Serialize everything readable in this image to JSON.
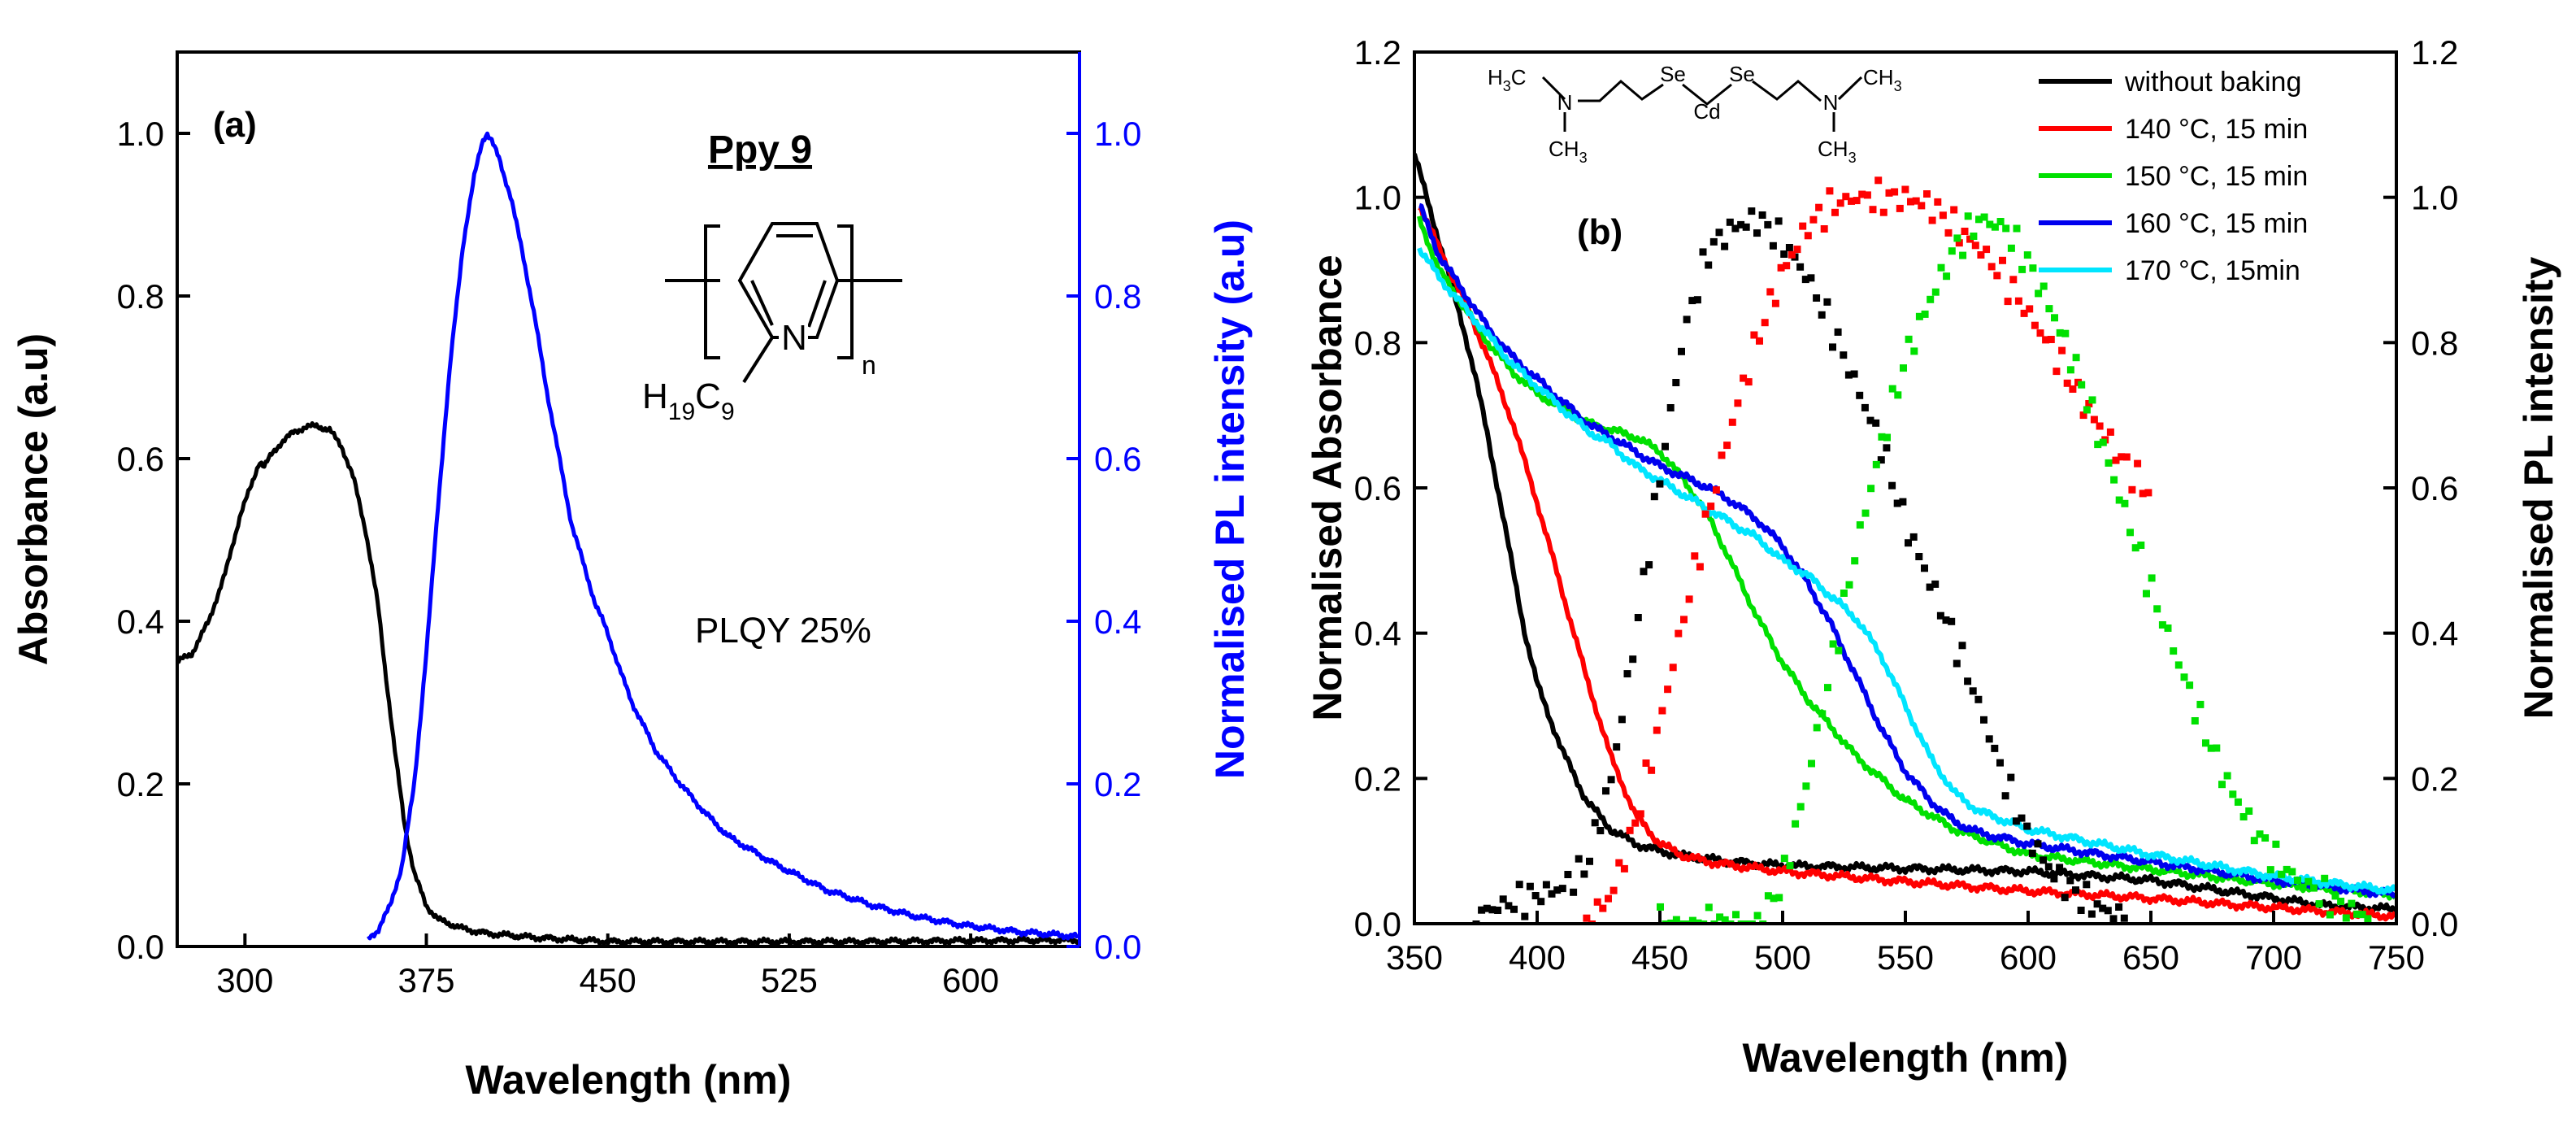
{
  "chart_data": [
    {
      "panel": "a",
      "type": "line",
      "panel_label": "(a)",
      "xlabel": "Wavelength (nm)",
      "ylabel": "Absorbance (a.u)",
      "y2label": "Normalised PL intensity (a.u)",
      "xlim": [
        272,
        645
      ],
      "ylim": [
        0,
        1.1
      ],
      "y2lim": [
        0,
        1.1
      ],
      "xticks": [
        300,
        375,
        450,
        525,
        600
      ],
      "yticks": [
        "0.0",
        "0.2",
        "0.4",
        "0.6",
        "0.8",
        "1.0"
      ],
      "y2ticks": [
        "0.0",
        "0.2",
        "0.4",
        "0.6",
        "0.8",
        "1.0"
      ],
      "compound_label": "Ppy 9",
      "substituent": {
        "main": "H",
        "sub1": "19",
        "mid": "C",
        "sub2": "9"
      },
      "ring_atom": "N",
      "repeat_subscript": "n",
      "annotation": "PLQY  25%",
      "series": [
        {
          "name": "Absorbance",
          "axis": "left",
          "color": "#000000",
          "x": [
            272,
            278,
            285,
            292,
            298,
            303,
            306,
            308,
            311,
            315,
            320,
            325,
            330,
            335,
            340,
            345,
            350,
            355,
            358,
            362,
            366,
            370,
            375,
            380,
            390,
            400,
            420,
            450,
            500,
            550,
            600,
            645
          ],
          "y": [
            0.35,
            0.36,
            0.4,
            0.46,
            0.53,
            0.57,
            0.597,
            0.59,
            0.605,
            0.62,
            0.632,
            0.639,
            0.64,
            0.635,
            0.615,
            0.575,
            0.51,
            0.42,
            0.34,
            0.24,
            0.15,
            0.09,
            0.05,
            0.033,
            0.022,
            0.016,
            0.011,
            0.006,
            0.006,
            0.006,
            0.007,
            0.008
          ]
        },
        {
          "name": "PL",
          "axis": "right",
          "color": "#0000ff",
          "x": [
            351,
            355,
            360,
            365,
            370,
            375,
            380,
            385,
            390,
            395,
            398,
            400,
            402,
            405,
            410,
            415,
            420,
            425,
            430,
            435,
            440,
            445,
            448,
            450,
            455,
            460,
            470,
            480,
            490,
            500,
            520,
            540,
            560,
            580,
            600,
            620,
            645
          ],
          "y": [
            0.01,
            0.02,
            0.05,
            0.1,
            0.2,
            0.36,
            0.55,
            0.72,
            0.86,
            0.95,
            0.99,
            1.0,
            0.99,
            0.97,
            0.92,
            0.85,
            0.77,
            0.68,
            0.6,
            0.52,
            0.47,
            0.42,
            0.4,
            0.385,
            0.34,
            0.3,
            0.24,
            0.2,
            0.165,
            0.135,
            0.1,
            0.07,
            0.05,
            0.035,
            0.025,
            0.018,
            0.012
          ]
        }
      ]
    },
    {
      "panel": "b",
      "type": "line",
      "panel_label": "(b)",
      "xlabel": "Wavelength (nm)",
      "ylabel": "Normalised Absorbance",
      "y2label": "Normalised PL intensity",
      "xlim": [
        350,
        750
      ],
      "ylim": [
        0,
        1.2
      ],
      "y2lim": [
        0,
        1.2
      ],
      "xticks": [
        350,
        400,
        450,
        500,
        550,
        600,
        650,
        700,
        750
      ],
      "yticks": [
        "0.0",
        "0.2",
        "0.4",
        "0.6",
        "0.8",
        "1.0",
        "1.2"
      ],
      "y2ticks": [
        "0.0",
        "0.2",
        "0.4",
        "0.6",
        "0.8",
        "1.0",
        "1.2"
      ],
      "molecule": {
        "left_group": "H",
        "sub3": "3",
        "c": "C",
        "n": "N",
        "se": "Se",
        "cd": "Cd"
      },
      "legend": [
        "without baking",
        "140 °C, 15 min",
        "150 °C, 15 min",
        "160 °C, 15 min",
        "170 °C, 15min"
      ],
      "series": [
        {
          "name": "without baking",
          "kind": "absorbance",
          "color": "#000000",
          "x": [
            350,
            355,
            360,
            365,
            370,
            375,
            380,
            385,
            390,
            395,
            400,
            410,
            420,
            430,
            440,
            450,
            460,
            480,
            500,
            550,
            600,
            650,
            700,
            720,
            750
          ],
          "y": [
            1.06,
            1.0,
            0.94,
            0.88,
            0.82,
            0.75,
            0.67,
            0.58,
            0.49,
            0.4,
            0.33,
            0.24,
            0.17,
            0.13,
            0.11,
            0.1,
            0.093,
            0.085,
            0.08,
            0.076,
            0.072,
            0.06,
            0.035,
            0.025,
            0.02
          ]
        },
        {
          "name": "140 °C, 15 min",
          "kind": "absorbance",
          "color": "#ff0000",
          "x": [
            352,
            360,
            370,
            380,
            390,
            400,
            410,
            420,
            430,
            440,
            450,
            460,
            470,
            480,
            500,
            550,
            600,
            650,
            700,
            750
          ],
          "y": [
            0.99,
            0.93,
            0.86,
            0.78,
            0.69,
            0.58,
            0.46,
            0.34,
            0.23,
            0.15,
            0.11,
            0.093,
            0.085,
            0.08,
            0.072,
            0.058,
            0.045,
            0.035,
            0.022,
            0.01
          ]
        },
        {
          "name": "150 °C, 15 min",
          "kind": "absorbance",
          "color": "#00e000",
          "x": [
            352,
            360,
            370,
            380,
            390,
            400,
            410,
            420,
            430,
            440,
            450,
            460,
            470,
            480,
            490,
            500,
            510,
            520,
            530,
            550,
            570,
            600,
            650,
            700,
            750
          ],
          "y": [
            0.97,
            0.9,
            0.85,
            0.8,
            0.76,
            0.73,
            0.71,
            0.69,
            0.68,
            0.67,
            0.65,
            0.61,
            0.56,
            0.49,
            0.42,
            0.36,
            0.31,
            0.27,
            0.23,
            0.17,
            0.13,
            0.095,
            0.075,
            0.055,
            0.04
          ]
        },
        {
          "name": "160 °C, 15 min",
          "kind": "absorbance",
          "color": "#0000ee",
          "x": [
            352,
            360,
            370,
            380,
            390,
            400,
            410,
            420,
            430,
            440,
            450,
            460,
            470,
            480,
            490,
            500,
            510,
            520,
            530,
            540,
            550,
            560,
            570,
            580,
            600,
            650,
            700,
            750
          ],
          "y": [
            0.99,
            0.92,
            0.87,
            0.82,
            0.78,
            0.75,
            0.72,
            0.69,
            0.67,
            0.65,
            0.63,
            0.615,
            0.6,
            0.58,
            0.555,
            0.52,
            0.47,
            0.41,
            0.34,
            0.27,
            0.21,
            0.17,
            0.14,
            0.125,
            0.11,
            0.085,
            0.06,
            0.04
          ]
        },
        {
          "name": "170 °C, 15min",
          "kind": "absorbance",
          "color": "#00e5ff",
          "x": [
            352,
            360,
            370,
            380,
            390,
            400,
            410,
            420,
            430,
            440,
            450,
            460,
            470,
            480,
            490,
            500,
            510,
            520,
            530,
            540,
            550,
            560,
            570,
            580,
            600,
            650,
            700,
            750
          ],
          "y": [
            0.93,
            0.89,
            0.85,
            0.81,
            0.77,
            0.74,
            0.71,
            0.68,
            0.66,
            0.63,
            0.61,
            0.59,
            0.57,
            0.55,
            0.53,
            0.5,
            0.48,
            0.45,
            0.42,
            0.37,
            0.3,
            0.23,
            0.18,
            0.155,
            0.13,
            0.095,
            0.065,
            0.045
          ]
        },
        {
          "name": "PL without baking",
          "kind": "pl",
          "color": "#000000",
          "x": [
            375,
            380,
            390,
            400,
            410,
            420,
            430,
            440,
            450,
            460,
            470,
            480,
            490,
            500,
            510,
            520,
            530,
            540,
            550,
            560,
            570,
            580,
            590,
            600,
            610,
            620,
            630,
            640
          ],
          "y": [
            0.01,
            0.02,
            0.03,
            0.04,
            0.05,
            0.08,
            0.2,
            0.4,
            0.62,
            0.82,
            0.93,
            0.96,
            0.97,
            0.94,
            0.89,
            0.82,
            0.74,
            0.66,
            0.55,
            0.47,
            0.39,
            0.3,
            0.2,
            0.12,
            0.07,
            0.04,
            0.02,
            0.01
          ]
        },
        {
          "name": "PL 140 °C",
          "kind": "pl",
          "color": "#ff0000",
          "x": [
            420,
            430,
            440,
            450,
            460,
            470,
            480,
            490,
            500,
            510,
            520,
            530,
            540,
            550,
            560,
            570,
            580,
            590,
            600,
            610,
            620,
            630,
            640,
            650
          ],
          "y": [
            0.0,
            0.04,
            0.14,
            0.28,
            0.43,
            0.57,
            0.7,
            0.81,
            0.9,
            0.96,
            0.99,
            1.0,
            1.0,
            1.0,
            0.99,
            0.96,
            0.93,
            0.89,
            0.84,
            0.79,
            0.73,
            0.68,
            0.63,
            0.59
          ]
        },
        {
          "name": "PL 150 °C",
          "kind": "pl",
          "color": "#00e000",
          "x": [
            450,
            460,
            470,
            480,
            490,
            500,
            510,
            520,
            530,
            540,
            550,
            560,
            570,
            580,
            590,
            600,
            610,
            620,
            630,
            640,
            650,
            660,
            670,
            680,
            690,
            700,
            710,
            720,
            730,
            740
          ],
          "y": [
            0.0,
            0.0,
            0.0,
            0.0,
            0.0,
            0.06,
            0.2,
            0.36,
            0.52,
            0.66,
            0.78,
            0.86,
            0.93,
            0.97,
            0.96,
            0.91,
            0.84,
            0.76,
            0.66,
            0.56,
            0.46,
            0.37,
            0.28,
            0.2,
            0.14,
            0.09,
            0.06,
            0.04,
            0.02,
            0.01
          ]
        }
      ]
    }
  ]
}
